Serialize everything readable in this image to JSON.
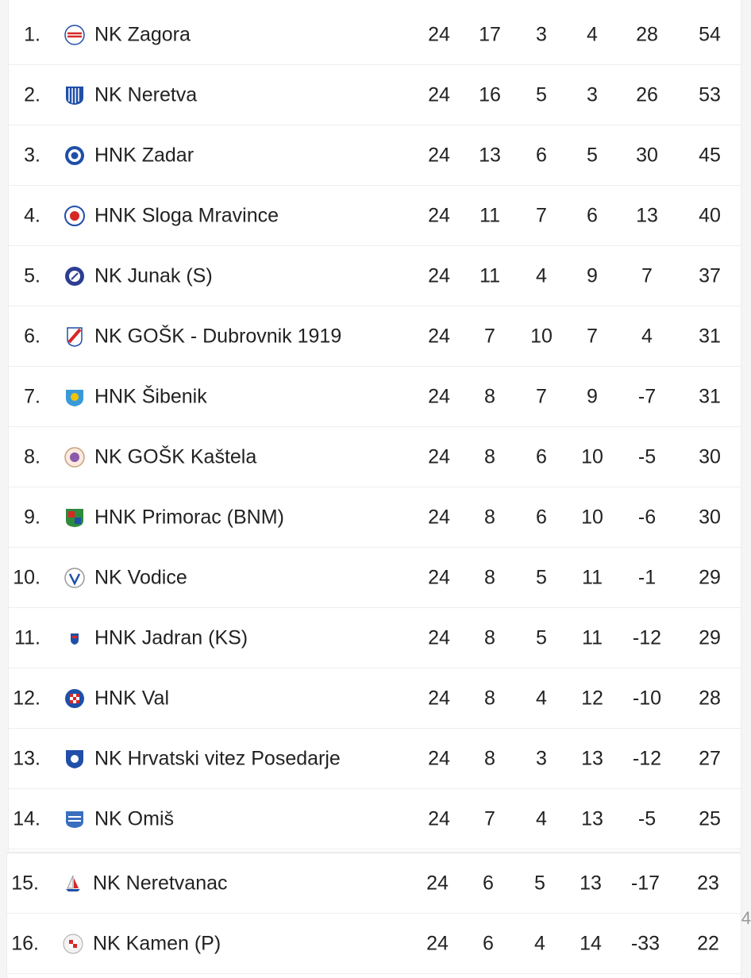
{
  "standings": [
    {
      "pos": "1.",
      "team": "NK Zagora",
      "logo_icon": "nk-zagora-crest-icon",
      "played": "24",
      "won": "17",
      "drawn": "3",
      "lost": "4",
      "goal_diff": "28",
      "points": "54"
    },
    {
      "pos": "2.",
      "team": "NK Neretva",
      "logo_icon": "nk-neretva-crest-icon",
      "played": "24",
      "won": "16",
      "drawn": "5",
      "lost": "3",
      "goal_diff": "26",
      "points": "53"
    },
    {
      "pos": "3.",
      "team": "HNK Zadar",
      "logo_icon": "hnk-zadar-crest-icon",
      "played": "24",
      "won": "13",
      "drawn": "6",
      "lost": "5",
      "goal_diff": "30",
      "points": "45"
    },
    {
      "pos": "4.",
      "team": "HNK Sloga Mravince",
      "logo_icon": "hnk-sloga-mravince-crest-icon",
      "played": "24",
      "won": "11",
      "drawn": "7",
      "lost": "6",
      "goal_diff": "13",
      "points": "40"
    },
    {
      "pos": "5.",
      "team": "NK Junak (S)",
      "logo_icon": "nk-junak-crest-icon",
      "played": "24",
      "won": "11",
      "drawn": "4",
      "lost": "9",
      "goal_diff": "7",
      "points": "37"
    },
    {
      "pos": "6.",
      "team": "NK GOŠK - Dubrovnik 1919",
      "logo_icon": "nk-gosk-dubrovnik-crest-icon",
      "played": "24",
      "won": "7",
      "drawn": "10",
      "lost": "7",
      "goal_diff": "4",
      "points": "31"
    },
    {
      "pos": "7.",
      "team": "HNK Šibenik",
      "logo_icon": "hnk-sibenik-crest-icon",
      "played": "24",
      "won": "8",
      "drawn": "7",
      "lost": "9",
      "goal_diff": "-7",
      "points": "31"
    },
    {
      "pos": "8.",
      "team": "NK GOŠK Kaštela",
      "logo_icon": "nk-gosk-kastela-crest-icon",
      "played": "24",
      "won": "8",
      "drawn": "6",
      "lost": "10",
      "goal_diff": "-5",
      "points": "30"
    },
    {
      "pos": "9.",
      "team": "HNK Primorac (BNM)",
      "logo_icon": "hnk-primorac-crest-icon",
      "played": "24",
      "won": "8",
      "drawn": "6",
      "lost": "10",
      "goal_diff": "-6",
      "points": "30"
    },
    {
      "pos": "10.",
      "team": "NK Vodice",
      "logo_icon": "nk-vodice-crest-icon",
      "played": "24",
      "won": "8",
      "drawn": "5",
      "lost": "11",
      "goal_diff": "-1",
      "points": "29"
    },
    {
      "pos": "11.",
      "team": "HNK Jadran (KS)",
      "logo_icon": "hnk-jadran-crest-icon",
      "played": "24",
      "won": "8",
      "drawn": "5",
      "lost": "11",
      "goal_diff": "-12",
      "points": "29"
    },
    {
      "pos": "12.",
      "team": "HNK Val",
      "logo_icon": "hnk-val-crest-icon",
      "played": "24",
      "won": "8",
      "drawn": "4",
      "lost": "12",
      "goal_diff": "-10",
      "points": "28"
    },
    {
      "pos": "13.",
      "team": "NK Hrvatski vitez Posedarje",
      "logo_icon": "nk-hrvatski-vitez-crest-icon",
      "played": "24",
      "won": "8",
      "drawn": "3",
      "lost": "13",
      "goal_diff": "-12",
      "points": "27"
    },
    {
      "pos": "14.",
      "team": "NK Omiš",
      "logo_icon": "nk-omis-crest-icon",
      "played": "24",
      "won": "7",
      "drawn": "4",
      "lost": "13",
      "goal_diff": "-5",
      "points": "25"
    },
    {
      "pos": "15.",
      "team": "NK Neretvanac",
      "logo_icon": "nk-neretvanac-crest-icon",
      "played": "24",
      "won": "6",
      "drawn": "5",
      "lost": "13",
      "goal_diff": "-17",
      "points": "23"
    },
    {
      "pos": "16.",
      "team": "NK Kamen (P)",
      "logo_icon": "nk-kamen-crest-icon",
      "played": "24",
      "won": "6",
      "drawn": "4",
      "lost": "14",
      "goal_diff": "-33",
      "points": "22"
    }
  ],
  "colors": {
    "text": "#222222",
    "row_border": "#eeeeee",
    "accent_blue": "#1f4fa8",
    "accent_red": "#d62828"
  },
  "edge_char": "4"
}
